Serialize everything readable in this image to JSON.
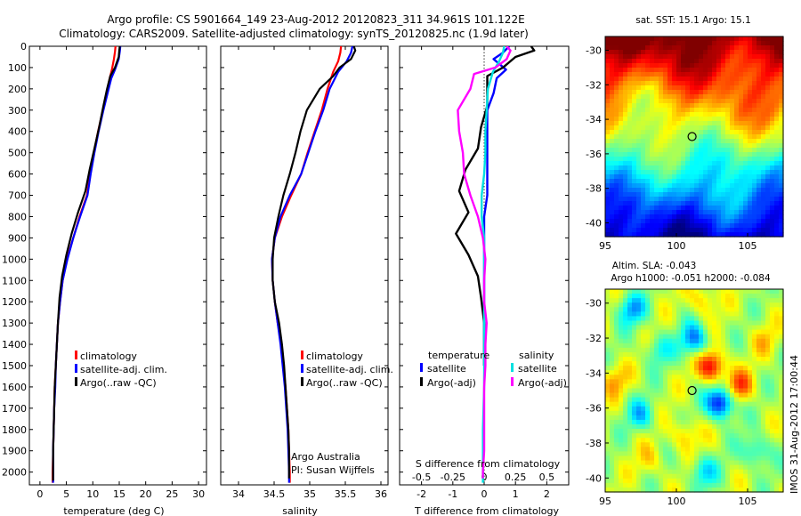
{
  "header": {
    "line1": "Argo profile: CS 5901664_149 23-Aug-2012 20120823_311 34.961S 101.122E",
    "line2": "Climatology: CARS2009. Satellite-adjusted climatology: synTS_20120825.nc (1.9d later)"
  },
  "colors": {
    "climatology": "#ff0000",
    "satellite": "#0000ff",
    "argo": "#000000",
    "sal_satellite": "#00e0e0",
    "sal_argo": "#ff00ff"
  },
  "depth_axis": {
    "ylim": [
      0,
      2060
    ],
    "ticks": [
      0,
      100,
      200,
      300,
      400,
      500,
      600,
      700,
      800,
      900,
      1000,
      1100,
      1200,
      1300,
      1400,
      1500,
      1600,
      1700,
      1800,
      1900,
      2000
    ]
  },
  "panel_temp": {
    "xlabel": "temperature (deg C)",
    "xlim": [
      -2,
      31.5
    ],
    "xticks": [
      0,
      5,
      10,
      15,
      20,
      25,
      30
    ],
    "xticklabels": [
      "0",
      "5",
      "10",
      "15",
      "20",
      "25",
      "30"
    ],
    "legend": [
      "climatology",
      "satellite-adj. clim.",
      "Argo(..raw -QC)"
    ]
  },
  "panel_sal": {
    "xlabel": "salinity",
    "xlim": [
      33.75,
      36.1
    ],
    "xticks": [
      34,
      34.5,
      35,
      35.5,
      36
    ],
    "xticklabels": [
      "34",
      "34.5",
      "35",
      "35.5",
      "36"
    ],
    "legend": [
      "climatology",
      "satellite-adj. clim.",
      "Argo(..raw -QC)"
    ],
    "note1": "Argo Australia",
    "note2": "PI: Susan Wijffels"
  },
  "panel_diff": {
    "xlabel_top": "S difference from climatology",
    "xlabel_bottom": "T difference from climatology",
    "xlim": [
      -2.7,
      2.7
    ],
    "xticks_bottom": [
      -2,
      -1,
      0,
      1,
      2
    ],
    "xticklabels_bottom": [
      "-2",
      "-1",
      "0",
      "1",
      "2"
    ],
    "xticks_top": [
      -0.5,
      -0.25,
      0,
      0.25,
      0.5
    ],
    "xticklabels_top": [
      "-0.5",
      "-0.25",
      "0",
      "0.25",
      "0.5"
    ],
    "legend_t_title": "temperature",
    "legend_s_title": "salinity",
    "legend_items": [
      "satellite",
      "Argo(-adj)"
    ]
  },
  "map_sst": {
    "title": "sat. SST: 15.1 Argo: 15.1",
    "xlim": [
      95,
      107.5
    ],
    "ylim": [
      -40.8,
      -29.2
    ],
    "xticks": [
      95,
      100,
      105
    ],
    "yticks": [
      -30,
      -32,
      -34,
      -36,
      -38,
      -40
    ],
    "marker": [
      101.1,
      -35.0
    ]
  },
  "map_sla": {
    "title1": "Altim. SLA: -0.043",
    "title2": "Argo h1000: -0.051 h2000: -0.084",
    "xlim": [
      95,
      107.5
    ],
    "ylim": [
      -40.8,
      -29.2
    ],
    "xticks": [
      95,
      100,
      105
    ],
    "yticks": [
      -30,
      -32,
      -34,
      -36,
      -38,
      -40
    ],
    "marker": [
      101.1,
      -35.0
    ]
  },
  "side_label": "IMOS 31-Aug-2012 17:00:44",
  "chart_data": [
    {
      "type": "line",
      "name": "temperature profile",
      "xlabel": "temperature (deg C)",
      "ylim": [
        0,
        2060
      ],
      "series": [
        {
          "name": "climatology",
          "points": [
            [
              14.3,
              0
            ],
            [
              14.2,
              25
            ],
            [
              14.0,
              60
            ],
            [
              13.6,
              110
            ],
            [
              13.2,
              150
            ],
            [
              12.6,
              220
            ],
            [
              11.9,
              300
            ],
            [
              11.0,
              400
            ],
            [
              10.2,
              500
            ],
            [
              9.5,
              600
            ],
            [
              8.9,
              700
            ],
            [
              7.5,
              800
            ],
            [
              6.3,
              900
            ],
            [
              5.1,
              1000
            ],
            [
              4.3,
              1100
            ],
            [
              3.8,
              1200
            ],
            [
              3.4,
              1300
            ],
            [
              3.2,
              1400
            ],
            [
              3.0,
              1500
            ],
            [
              2.8,
              1600
            ],
            [
              2.7,
              1700
            ],
            [
              2.6,
              1800
            ],
            [
              2.5,
              1900
            ],
            [
              2.4,
              2000
            ],
            [
              2.4,
              2050
            ]
          ]
        },
        {
          "name": "satellite-adj. clim.",
          "points": [
            [
              15.2,
              0
            ],
            [
              15.1,
              25
            ],
            [
              14.9,
              60
            ],
            [
              14.2,
              110
            ],
            [
              13.5,
              150
            ],
            [
              12.8,
              220
            ],
            [
              12.0,
              300
            ],
            [
              11.1,
              400
            ],
            [
              10.3,
              500
            ],
            [
              9.6,
              600
            ],
            [
              9.0,
              700
            ],
            [
              7.6,
              800
            ],
            [
              6.3,
              900
            ],
            [
              5.2,
              1000
            ],
            [
              4.3,
              1100
            ],
            [
              3.8,
              1200
            ],
            [
              3.4,
              1300
            ],
            [
              3.2,
              1400
            ],
            [
              3.0,
              1500
            ],
            [
              2.9,
              1600
            ],
            [
              2.7,
              1700
            ],
            [
              2.6,
              1800
            ],
            [
              2.5,
              1900
            ],
            [
              2.5,
              2000
            ],
            [
              2.5,
              2050
            ]
          ]
        },
        {
          "name": "Argo(..raw -QC)",
          "points": [
            [
              15.1,
              0
            ],
            [
              15.0,
              20
            ],
            [
              14.9,
              50
            ],
            [
              14.2,
              100
            ],
            [
              13.3,
              140
            ],
            [
              12.7,
              200
            ],
            [
              12.0,
              280
            ],
            [
              11.2,
              380
            ],
            [
              10.3,
              480
            ],
            [
              9.4,
              580
            ],
            [
              8.6,
              680
            ],
            [
              7.2,
              780
            ],
            [
              6.0,
              880
            ],
            [
              5.0,
              980
            ],
            [
              4.2,
              1080
            ],
            [
              3.7,
              1180
            ],
            [
              3.4,
              1300
            ],
            [
              3.2,
              1400
            ],
            [
              3.0,
              1500
            ],
            [
              2.8,
              1600
            ],
            [
              2.7,
              1700
            ],
            [
              2.6,
              1800
            ],
            [
              2.5,
              1900
            ],
            [
              2.5,
              2000
            ],
            [
              2.5,
              2040
            ]
          ]
        }
      ]
    },
    {
      "type": "line",
      "name": "salinity profile",
      "xlabel": "salinity",
      "ylim": [
        0,
        2060
      ],
      "series": [
        {
          "name": "climatology",
          "points": [
            [
              35.44,
              0
            ],
            [
              35.43,
              30
            ],
            [
              35.4,
              70
            ],
            [
              35.33,
              120
            ],
            [
              35.25,
              200
            ],
            [
              35.17,
              300
            ],
            [
              35.07,
              400
            ],
            [
              34.97,
              500
            ],
            [
              34.88,
              600
            ],
            [
              34.74,
              700
            ],
            [
              34.61,
              800
            ],
            [
              34.51,
              900
            ],
            [
              34.47,
              1000
            ],
            [
              34.48,
              1100
            ],
            [
              34.51,
              1200
            ],
            [
              34.55,
              1300
            ],
            [
              34.6,
              1400
            ],
            [
              34.63,
              1500
            ],
            [
              34.66,
              1600
            ],
            [
              34.68,
              1700
            ],
            [
              34.7,
              1800
            ],
            [
              34.71,
              1900
            ],
            [
              34.72,
              2000
            ],
            [
              34.72,
              2050
            ]
          ]
        },
        {
          "name": "satellite-adj. clim.",
          "points": [
            [
              35.6,
              0
            ],
            [
              35.58,
              30
            ],
            [
              35.52,
              70
            ],
            [
              35.4,
              120
            ],
            [
              35.28,
              200
            ],
            [
              35.19,
              300
            ],
            [
              35.08,
              400
            ],
            [
              34.98,
              500
            ],
            [
              34.88,
              600
            ],
            [
              34.72,
              700
            ],
            [
              34.59,
              800
            ],
            [
              34.51,
              900
            ],
            [
              34.47,
              1000
            ],
            [
              34.48,
              1100
            ],
            [
              34.51,
              1200
            ],
            [
              34.55,
              1300
            ],
            [
              34.59,
              1400
            ],
            [
              34.62,
              1500
            ],
            [
              34.65,
              1600
            ],
            [
              34.67,
              1700
            ],
            [
              34.69,
              1800
            ],
            [
              34.7,
              1900
            ],
            [
              34.71,
              2000
            ],
            [
              34.71,
              2050
            ]
          ]
        },
        {
          "name": "Argo(..raw -QC)",
          "points": [
            [
              35.62,
              0
            ],
            [
              35.64,
              20
            ],
            [
              35.58,
              60
            ],
            [
              35.42,
              100
            ],
            [
              35.33,
              140
            ],
            [
              35.14,
              200
            ],
            [
              34.96,
              300
            ],
            [
              34.87,
              400
            ],
            [
              34.8,
              500
            ],
            [
              34.72,
              600
            ],
            [
              34.63,
              700
            ],
            [
              34.56,
              800
            ],
            [
              34.5,
              900
            ],
            [
              34.48,
              1000
            ],
            [
              34.48,
              1100
            ],
            [
              34.51,
              1200
            ],
            [
              34.57,
              1300
            ],
            [
              34.61,
              1400
            ],
            [
              34.64,
              1500
            ],
            [
              34.66,
              1600
            ],
            [
              34.68,
              1700
            ],
            [
              34.7,
              1800
            ],
            [
              34.71,
              1900
            ],
            [
              34.71,
              2000
            ],
            [
              34.71,
              2030
            ]
          ]
        }
      ]
    },
    {
      "type": "line",
      "name": "difference from climatology",
      "xlabel": "T difference from climatology",
      "ylim": [
        0,
        2060
      ],
      "series": [
        {
          "name": "temperature satellite",
          "axis": "T",
          "points": [
            [
              0.8,
              0
            ],
            [
              0.6,
              30
            ],
            [
              0.3,
              60
            ],
            [
              0.7,
              110
            ],
            [
              0.4,
              150
            ],
            [
              0.3,
              220
            ],
            [
              0.1,
              300
            ],
            [
              0.1,
              400
            ],
            [
              0.1,
              500
            ],
            [
              0.1,
              600
            ],
            [
              0.1,
              700
            ],
            [
              0.0,
              800
            ],
            [
              0.0,
              900
            ],
            [
              0.0,
              1000
            ],
            [
              0.0,
              1100
            ],
            [
              0.0,
              1200
            ],
            [
              0.0,
              1300
            ],
            [
              0.0,
              1400
            ],
            [
              0.0,
              1500
            ]
          ]
        },
        {
          "name": "temperature Argo(-adj)",
          "axis": "T",
          "points": [
            [
              1.5,
              0
            ],
            [
              1.6,
              20
            ],
            [
              1.0,
              50
            ],
            [
              0.6,
              100
            ],
            [
              0.1,
              140
            ],
            [
              0.1,
              200
            ],
            [
              0.1,
              280
            ],
            [
              -0.1,
              380
            ],
            [
              -0.2,
              480
            ],
            [
              -0.6,
              580
            ],
            [
              -0.8,
              680
            ],
            [
              -0.5,
              780
            ],
            [
              -0.9,
              880
            ],
            [
              -0.5,
              980
            ],
            [
              -0.2,
              1080
            ],
            [
              -0.1,
              1180
            ],
            [
              0.0,
              1300
            ],
            [
              0.0,
              1400
            ],
            [
              0.0,
              1500
            ]
          ]
        },
        {
          "name": "salinity satellite",
          "axis": "S",
          "points": [
            [
              0.16,
              0
            ],
            [
              0.15,
              30
            ],
            [
              0.12,
              70
            ],
            [
              0.07,
              120
            ],
            [
              0.03,
              200
            ],
            [
              0.02,
              300
            ],
            [
              0.01,
              400
            ],
            [
              0.01,
              500
            ],
            [
              0.0,
              600
            ],
            [
              -0.02,
              700
            ],
            [
              -0.02,
              800
            ],
            [
              0.0,
              900
            ],
            [
              0.0,
              1000
            ],
            [
              0.0,
              1200
            ],
            [
              0.0,
              1400
            ],
            [
              0.0,
              1600
            ],
            [
              -0.01,
              1800
            ],
            [
              -0.01,
              2000
            ],
            [
              -0.01,
              2050
            ]
          ]
        },
        {
          "name": "salinity Argo(-adj)",
          "axis": "S",
          "points": [
            [
              0.18,
              0
            ],
            [
              0.21,
              20
            ],
            [
              0.18,
              60
            ],
            [
              0.09,
              100
            ],
            [
              -0.08,
              130
            ],
            [
              -0.11,
              200
            ],
            [
              -0.21,
              300
            ],
            [
              -0.2,
              400
            ],
            [
              -0.17,
              500
            ],
            [
              -0.16,
              600
            ],
            [
              -0.11,
              700
            ],
            [
              -0.05,
              800
            ],
            [
              -0.01,
              900
            ],
            [
              0.01,
              1000
            ],
            [
              0.0,
              1100
            ],
            [
              0.0,
              1200
            ],
            [
              0.02,
              1300
            ],
            [
              0.01,
              1400
            ],
            [
              0.01,
              1500
            ],
            [
              0.0,
              1600
            ],
            [
              0.0,
              1800
            ],
            [
              0.0,
              1900
            ],
            [
              -0.01,
              2000
            ],
            [
              -0.01,
              2030
            ]
          ]
        }
      ]
    }
  ]
}
